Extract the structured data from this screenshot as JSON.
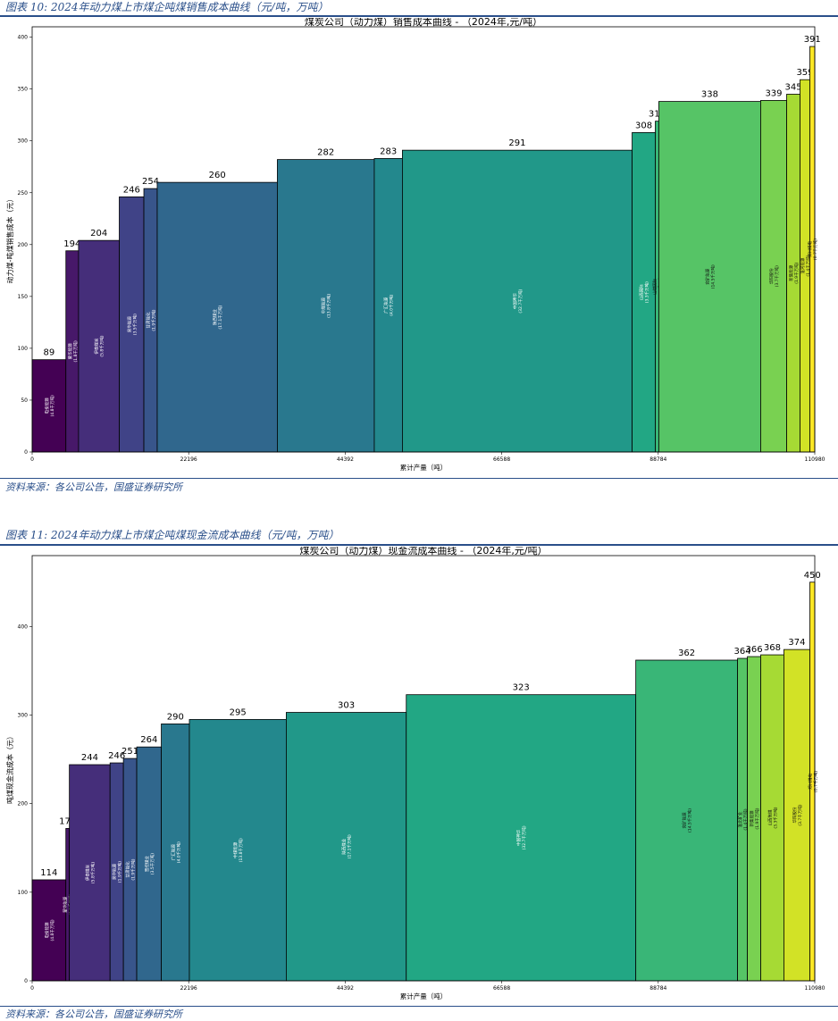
{
  "figures": [
    {
      "caption": "图表 10: 2024年动力煤上市煤企吨煤销售成本曲线（元/吨，万吨）",
      "source": "资料来源：各公司公告，国盛证券研究所"
    },
    {
      "caption": "图表 11: 2024年动力煤上市煤企吨煤现金流成本曲线（元/吨，万吨）",
      "source": "资料来源：各公司公告，国盛证券研究所"
    }
  ],
  "chart_data": [
    {
      "type": "bar",
      "subtype": "cost-curve (variable-width bars)",
      "title": "煤炭公司（动力煤）销售成本曲线 - （2024年,元/吨）",
      "xlabel": "累计产量（吨）",
      "ylabel": "动力煤-吨煤销售成本（元）",
      "xlim": [
        0,
        110980
      ],
      "ylim": [
        0,
        410
      ],
      "xticks": [
        "0",
        "22196",
        "44392",
        "66588",
        "88784",
        "110980"
      ],
      "yticks": [
        0,
        50,
        100,
        150,
        200,
        250,
        300,
        350,
        400
      ],
      "colormap": "viridis",
      "bars": [
        {
          "company": "电投能源",
          "output_label": "(4.8千万吨)",
          "output": 4800,
          "value": 89
        },
        {
          "company": "蒙华能源",
          "output_label": "(1.8千万吨)",
          "output": 1800,
          "value": 194
        },
        {
          "company": "伊泰煤炭",
          "output_label": "(5.8千万吨)",
          "output": 5800,
          "value": 204
        },
        {
          "company": "昊华能源",
          "output_label": "(3.5千万吨)",
          "output": 3500,
          "value": 246
        },
        {
          "company": "甘肃能化",
          "output_label": "(1.9千万吨)",
          "output": 1900,
          "value": 254
        },
        {
          "company": "陕西煤业",
          "output_label": "(17.1千万吨)",
          "output": 17100,
          "value": 260
        },
        {
          "company": "中煤能源",
          "output_label": "(13.8千万吨)",
          "output": 13800,
          "value": 282
        },
        {
          "company": "广汇能源",
          "output_label": "(4.0千万吨)",
          "output": 4000,
          "value": 283
        },
        {
          "company": "中国神华",
          "output_label": "(32.7千万吨)",
          "output": 32700,
          "value": 291
        },
        {
          "company": "山西国际",
          "output_label": "(3.3千万吨)",
          "output": 3300,
          "value": 308
        },
        {
          "company": "山煤国际",
          "output_label": "(0.5千万吨)",
          "output": 500,
          "value": 319
        },
        {
          "company": "兖矿能源",
          "output_label": "(14.5千万吨)",
          "output": 14500,
          "value": 338
        },
        {
          "company": "华阳股份",
          "output_label": "(3.7千万吨)",
          "output": 3700,
          "value": 339
        },
        {
          "company": "新集能源",
          "output_label": "(1.9千万吨)",
          "output": 1900,
          "value": 345
        },
        {
          "company": "淮河能源",
          "output_label": "(1.4千万吨)",
          "output": 1400,
          "value": 359
        },
        {
          "company": "郑州煤电",
          "output_label": "(0.7千万吨)",
          "output": 700,
          "value": 391
        }
      ]
    },
    {
      "type": "bar",
      "subtype": "cost-curve (variable-width bars)",
      "title": "煤炭公司（动力煤）现金流成本曲线 - （2024年,元/吨）",
      "xlabel": "累计产量（吨）",
      "ylabel": "吨煤现金流成本（元）",
      "xlim": [
        0,
        110980
      ],
      "ylim": [
        0,
        480
      ],
      "xticks": [
        "0",
        "22196",
        "44392",
        "66588",
        "88784",
        "110980"
      ],
      "yticks": [
        0,
        100,
        200,
        300,
        400
      ],
      "colormap": "viridis",
      "bars": [
        {
          "company": "电投能源",
          "output_label": "(4.8千万吨)",
          "output": 4800,
          "value": 114
        },
        {
          "company": "蒙华能源",
          "output_label": "(0.5千万吨)",
          "output": 500,
          "value": 172
        },
        {
          "company": "伊泰煤炭",
          "output_label": "(5.8千万吨)",
          "output": 5800,
          "value": 244
        },
        {
          "company": "昊华能源",
          "output_label": "(1.9千万吨)",
          "output": 1900,
          "value": 246
        },
        {
          "company": "甘肃能化",
          "output_label": "(1.9千万吨)",
          "output": 1900,
          "value": 251
        },
        {
          "company": "晋控煤业",
          "output_label": "(3.5千万吨)",
          "output": 3500,
          "value": 264
        },
        {
          "company": "广汇能源",
          "output_label": "(4.0千万吨)",
          "output": 4000,
          "value": 290
        },
        {
          "company": "中煤能源",
          "output_label": "(13.8千万吨)",
          "output": 13800,
          "value": 295
        },
        {
          "company": "陕西煤业",
          "output_label": "(17.1千万吨)",
          "output": 17100,
          "value": 303
        },
        {
          "company": "中国神华",
          "output_label": "(32.7千万吨)",
          "output": 32700,
          "value": 323
        },
        {
          "company": "兖矿能源",
          "output_label": "(14.5千万吨)",
          "output": 14500,
          "value": 362
        },
        {
          "company": "淮北矿业",
          "output_label": "(1.4千万吨)",
          "output": 1400,
          "value": 364
        },
        {
          "company": "新集能源",
          "output_label": "(1.9千万吨)",
          "output": 1900,
          "value": 366
        },
        {
          "company": "山西焦煤",
          "output_label": "(3.3千万吨)",
          "output": 3300,
          "value": 368
        },
        {
          "company": "华阳股份",
          "output_label": "(3.7千万吨)",
          "output": 3700,
          "value": 374
        },
        {
          "company": "郑州煤电",
          "output_label": "(0.7千万吨)",
          "output": 700,
          "value": 450
        }
      ]
    }
  ]
}
